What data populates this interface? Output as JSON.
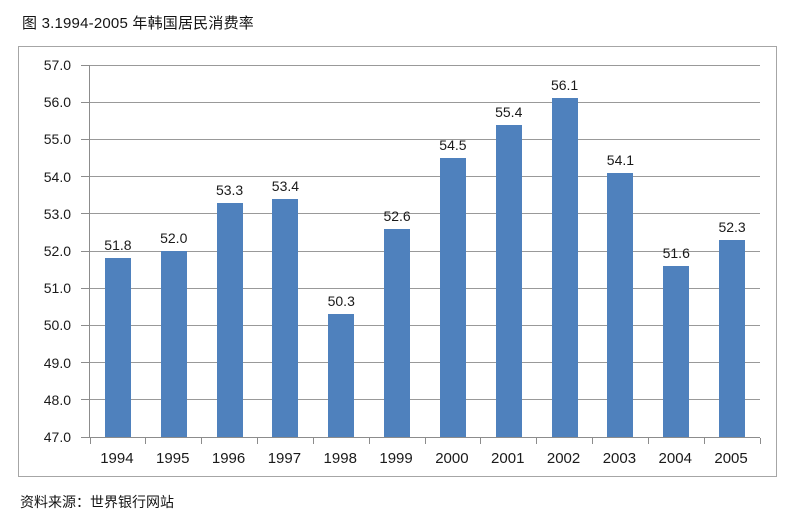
{
  "title": "图 3.1994-2005 年韩国居民消费率",
  "source_note": "资料来源：世界银行网站",
  "chart_data": {
    "type": "bar",
    "title": "图 3.1994-2005 年韩国居民消费率",
    "categories": [
      "1994",
      "1995",
      "1996",
      "1997",
      "1998",
      "1999",
      "2000",
      "2001",
      "2002",
      "2003",
      "2004",
      "2005"
    ],
    "values": [
      51.8,
      52.0,
      53.3,
      53.4,
      50.3,
      52.6,
      54.5,
      55.4,
      56.1,
      54.1,
      51.6,
      52.3
    ],
    "xlabel": "",
    "ylabel": "",
    "ylim": [
      47.0,
      57.0
    ],
    "ytick_step": 1.0,
    "yticks": [
      "57.0",
      "56.0",
      "55.0",
      "54.0",
      "53.0",
      "52.0",
      "51.0",
      "50.0",
      "49.0",
      "48.0",
      "47.0"
    ],
    "grid": true,
    "legend": false,
    "data_labels": true,
    "source": "资料来源：世界银行网站",
    "colors": {
      "bar": "#4F81BD",
      "gridline": "#999999",
      "axis": "#8c8c8c",
      "text": "#1a1a1a",
      "border": "#a6a6a6"
    }
  }
}
